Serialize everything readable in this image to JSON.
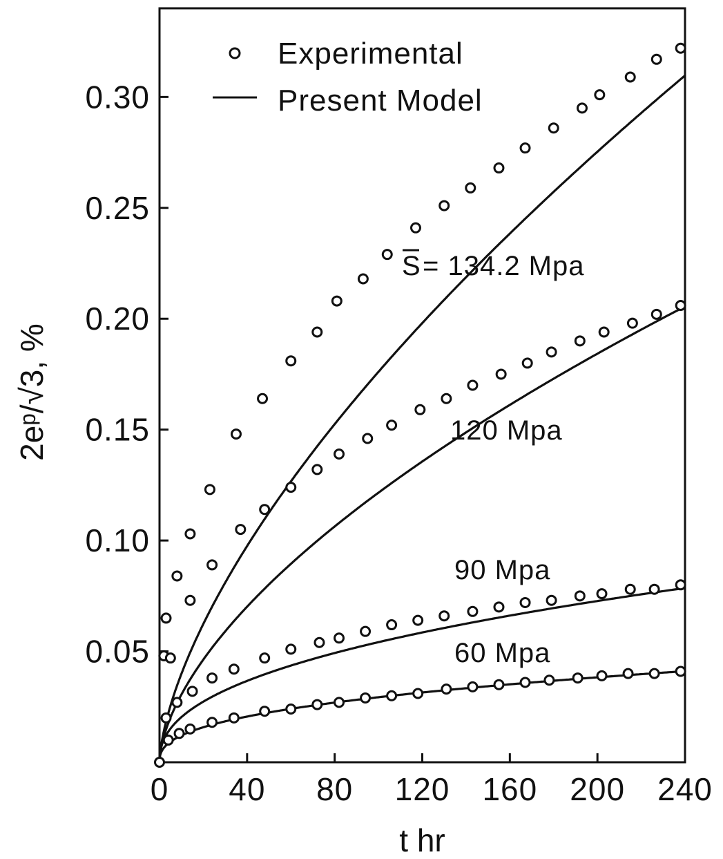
{
  "chart_data": {
    "type": "scatter",
    "title": "",
    "xlabel": "t hr",
    "ylabel": "2eᵖ/√3, %",
    "xlim": [
      0,
      240
    ],
    "ylim": [
      0,
      0.34
    ],
    "x_ticks": [
      0,
      40,
      80,
      120,
      160,
      200,
      240
    ],
    "x_tick_labels": [
      "0",
      "40",
      "80",
      "120",
      "160",
      "200",
      "240"
    ],
    "y_ticks": [
      0.05,
      0.1,
      0.15,
      0.2,
      0.25,
      0.3
    ],
    "y_tick_labels": [
      "0.05",
      "0.10",
      "0.15",
      "0.20",
      "0.25",
      "0.30"
    ],
    "grid": false,
    "legend": {
      "position": "top-right",
      "entries": [
        {
          "marker": "circle",
          "label": "Experimental"
        },
        {
          "marker": "line",
          "label": "Present Model"
        }
      ]
    },
    "colors": {
      "ink": "#111111",
      "background": "#ffffff"
    },
    "series": [
      {
        "stress_mpa": 134.2,
        "label_prefix": "S",
        "label_text": "= 134.2 Mpa",
        "model": {
          "a": 0.00903,
          "b": 0.645
        },
        "experimental": {
          "x": [
            0,
            2,
            3,
            8,
            14,
            23,
            35,
            47,
            60,
            72,
            81,
            93,
            104,
            117,
            130,
            142,
            155,
            167,
            180,
            193,
            201,
            215,
            227,
            238
          ],
          "y": [
            0.0,
            0.048,
            0.065,
            0.084,
            0.103,
            0.123,
            0.148,
            0.164,
            0.181,
            0.194,
            0.208,
            0.218,
            0.229,
            0.241,
            0.251,
            0.259,
            0.268,
            0.277,
            0.286,
            0.295,
            0.301,
            0.309,
            0.317,
            0.322
          ]
        }
      },
      {
        "stress_mpa": 120,
        "label_text": "120 Mpa",
        "model": {
          "a": 0.00767,
          "b": 0.6
        },
        "experimental": {
          "x": [
            5,
            14,
            24,
            37,
            48,
            60,
            72,
            82,
            95,
            106,
            119,
            131,
            143,
            156,
            168,
            179,
            192,
            203,
            216,
            227,
            238
          ],
          "y": [
            0.047,
            0.073,
            0.089,
            0.105,
            0.114,
            0.124,
            0.132,
            0.139,
            0.146,
            0.152,
            0.159,
            0.164,
            0.17,
            0.175,
            0.18,
            0.185,
            0.19,
            0.194,
            0.198,
            0.202,
            0.206
          ]
        }
      },
      {
        "stress_mpa": 90,
        "label_text": "90 Mpa",
        "model": {
          "a": 0.00765,
          "b": 0.425
        },
        "experimental": {
          "x": [
            3,
            8,
            15,
            24,
            34,
            48,
            60,
            73,
            82,
            94,
            106,
            118,
            130,
            143,
            155,
            167,
            179,
            192,
            202,
            215,
            226,
            238
          ],
          "y": [
            0.02,
            0.027,
            0.032,
            0.038,
            0.042,
            0.047,
            0.051,
            0.054,
            0.056,
            0.059,
            0.062,
            0.064,
            0.066,
            0.068,
            0.07,
            0.072,
            0.073,
            0.075,
            0.076,
            0.078,
            0.078,
            0.08
          ]
        }
      },
      {
        "stress_mpa": 60,
        "label_text": "60 Mpa",
        "model": {
          "a": 0.00498,
          "b": 0.385
        },
        "experimental": {
          "x": [
            4,
            9,
            14,
            24,
            34,
            48,
            60,
            72,
            82,
            94,
            106,
            118,
            131,
            143,
            155,
            167,
            178,
            191,
            202,
            214,
            226,
            238
          ],
          "y": [
            0.01,
            0.013,
            0.015,
            0.018,
            0.02,
            0.023,
            0.024,
            0.026,
            0.027,
            0.029,
            0.03,
            0.031,
            0.033,
            0.034,
            0.035,
            0.036,
            0.037,
            0.038,
            0.039,
            0.04,
            0.04,
            0.041
          ]
        }
      }
    ]
  }
}
